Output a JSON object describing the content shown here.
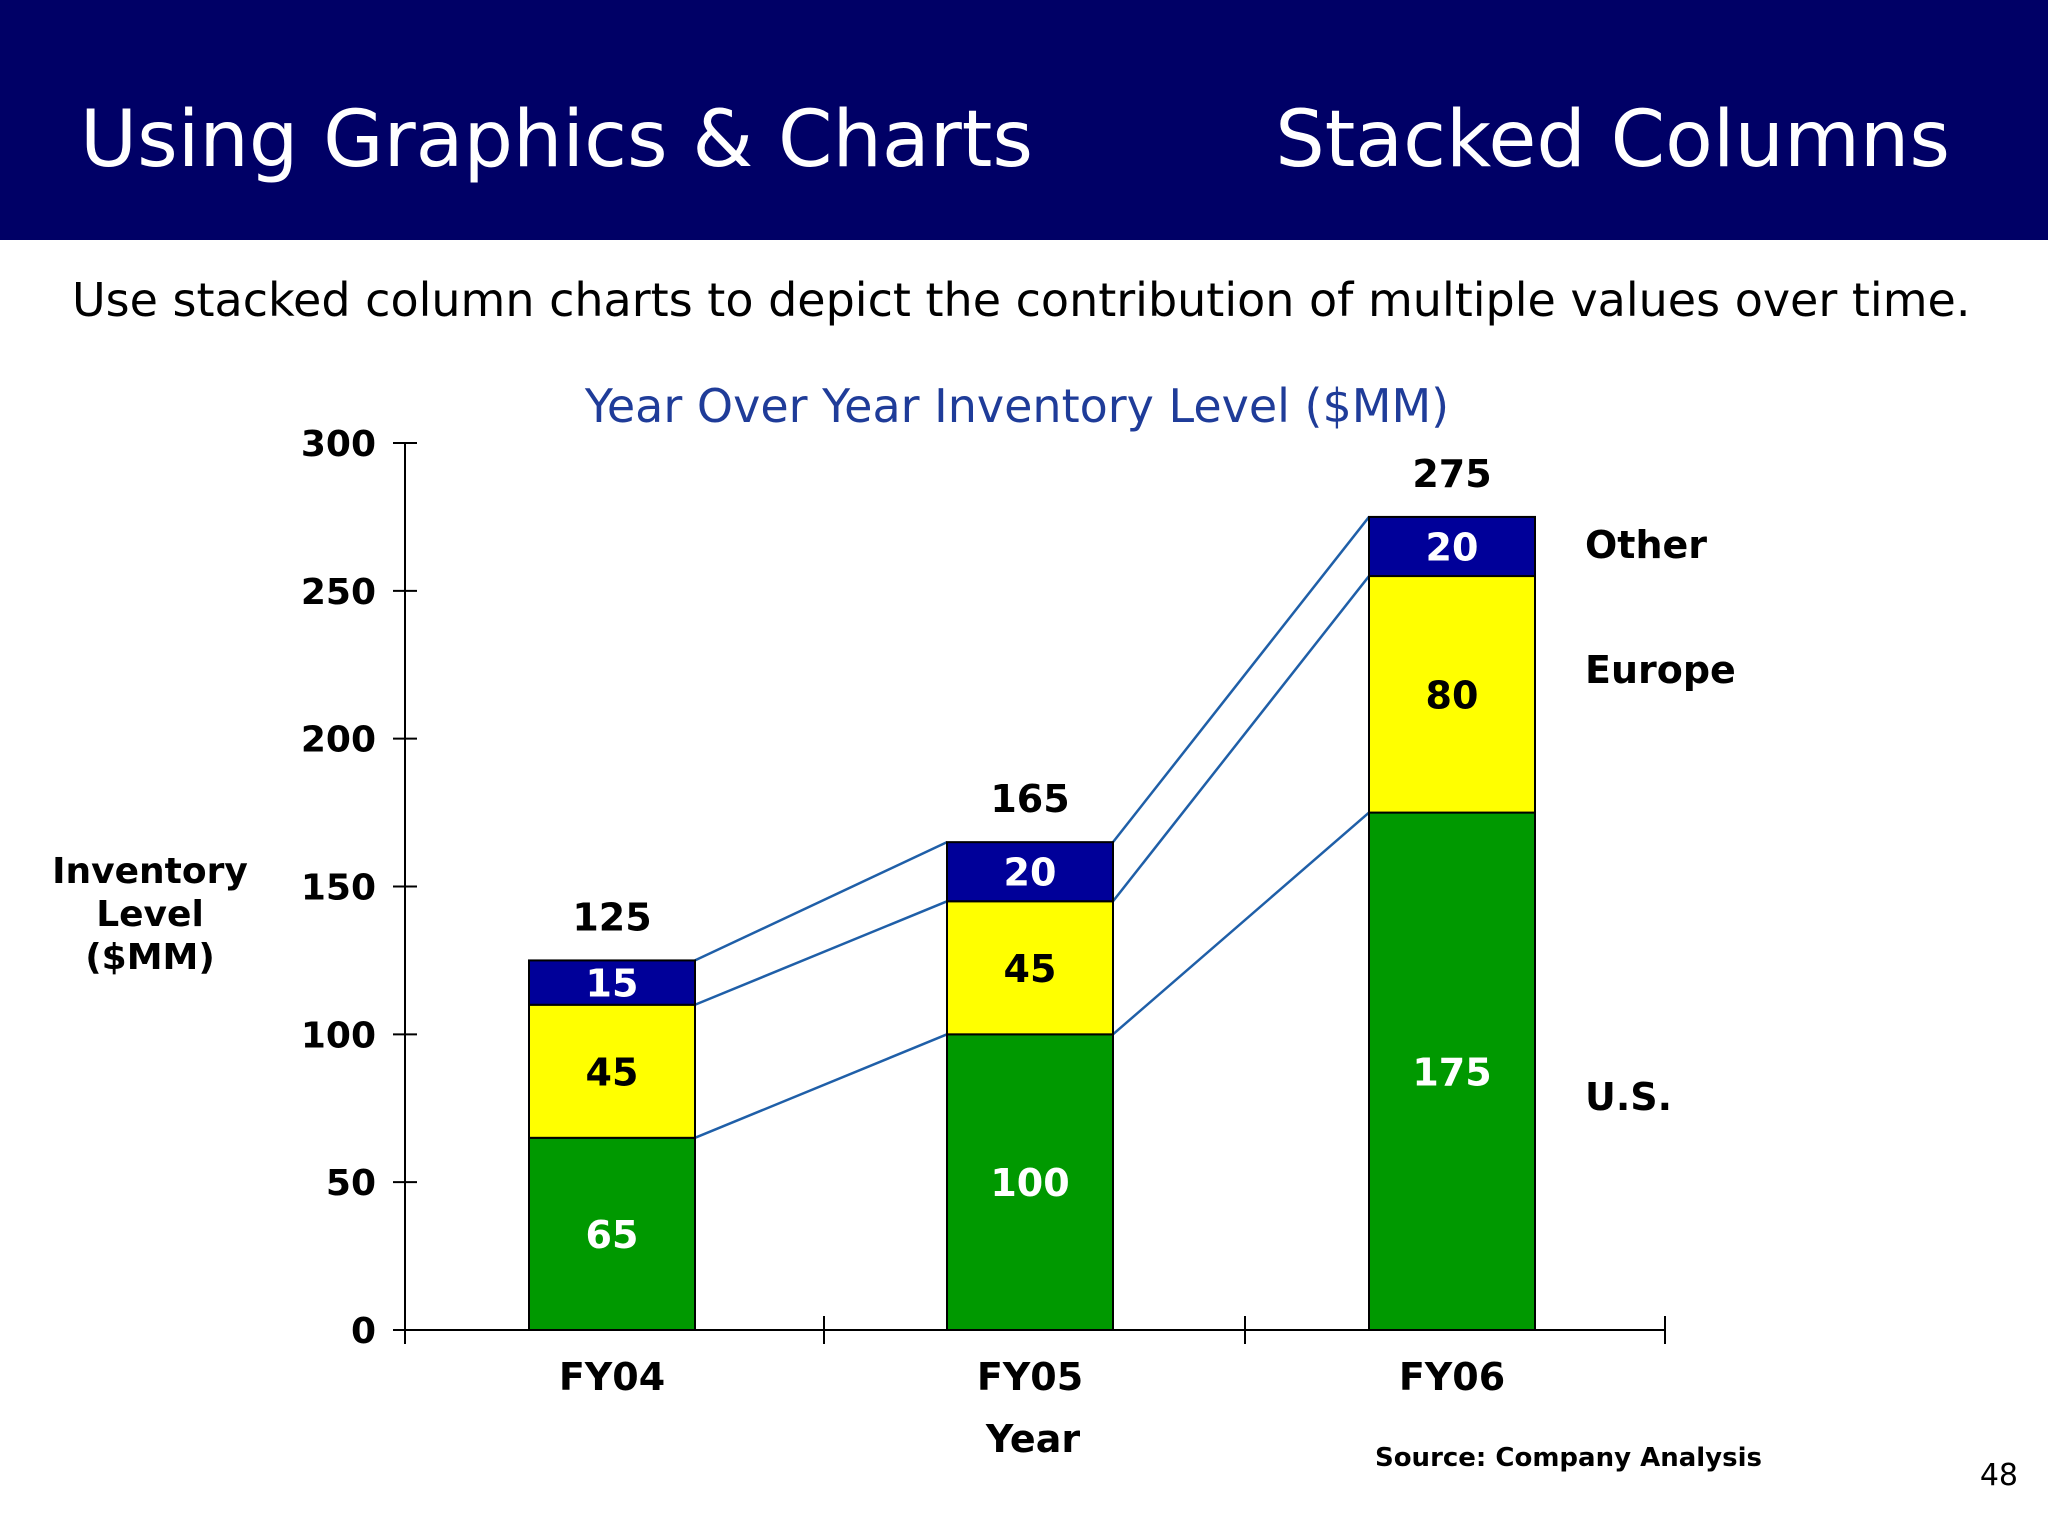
{
  "header": {
    "title": "Using Graphics & Charts",
    "topic": "Stacked Columns"
  },
  "subtitle": "Use stacked column charts to depict the contribution of multiple values over time.",
  "page_number": "48",
  "source": "Source: Company Analysis",
  "colors": {
    "header_bg": "#000066",
    "us": "#009900",
    "europe": "#ffff00",
    "other": "#000099",
    "connector": "#1f5fa8",
    "title": "#1f3c99"
  },
  "chart_data": {
    "type": "bar",
    "stacked": true,
    "title": "Year Over Year Inventory Level ($MM)",
    "xlabel": "Year",
    "ylabel": [
      "Inventory",
      "Level",
      "($MM)"
    ],
    "categories": [
      "FY04",
      "FY05",
      "FY06"
    ],
    "series": [
      {
        "name": "U.S.",
        "values": [
          65,
          100,
          175
        ],
        "color": "#009900",
        "label_color": "#ffffff"
      },
      {
        "name": "Europe",
        "values": [
          45,
          45,
          80
        ],
        "color": "#ffff00",
        "label_color": "#000000"
      },
      {
        "name": "Other",
        "values": [
          15,
          20,
          20
        ],
        "color": "#000099",
        "label_color": "#ffffff"
      }
    ],
    "totals": [
      125,
      165,
      275
    ],
    "ylim": [
      0,
      300
    ],
    "yticks": [
      0,
      50,
      100,
      150,
      200,
      250,
      300
    ],
    "grid": false,
    "legend": "right, labels beside last column",
    "series_lines": true
  }
}
